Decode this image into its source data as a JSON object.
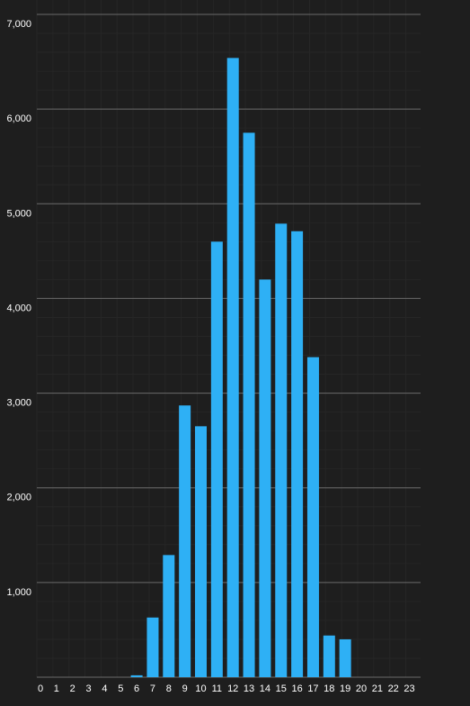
{
  "colors": {
    "background": "#1e1e1e",
    "bar": "#2eb0f5",
    "gridline_major": "#6a6a6a",
    "gridline_minor": "#262626",
    "axis_text": "#ffffff"
  },
  "chart_data": {
    "type": "bar",
    "title": "",
    "xlabel": "",
    "ylabel": "",
    "categories": [
      "0",
      "1",
      "2",
      "3",
      "4",
      "5",
      "6",
      "7",
      "8",
      "9",
      "10",
      "11",
      "12",
      "13",
      "14",
      "15",
      "16",
      "17",
      "18",
      "19",
      "20",
      "21",
      "22",
      "23"
    ],
    "x_tick_labels": [
      "0",
      "1",
      "2",
      "3",
      "4",
      "5",
      "6",
      "7",
      "8",
      "9",
      "10",
      "11",
      "12",
      "13",
      "14",
      "15",
      "16",
      "17",
      "18",
      "19",
      "20",
      "21",
      "22",
      "23"
    ],
    "values": [
      0,
      0,
      0,
      0,
      0,
      0,
      20,
      630,
      1290,
      2870,
      2650,
      4600,
      6540,
      5750,
      4200,
      4790,
      4710,
      3380,
      440,
      400,
      0,
      0,
      0,
      0
    ],
    "ylim": [
      0,
      7000
    ],
    "y_ticks": [
      1000,
      2000,
      3000,
      4000,
      5000,
      6000,
      7000
    ],
    "y_tick_labels": [
      "1,000",
      "2,000",
      "3,000",
      "4,000",
      "5,000",
      "6,000",
      "7,000"
    ],
    "grid": true,
    "legend": "none"
  }
}
